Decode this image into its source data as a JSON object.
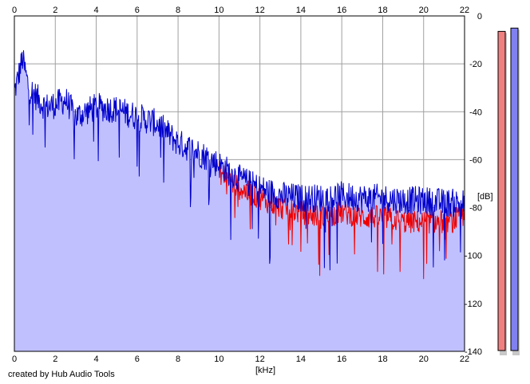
{
  "footer": {
    "credit": "created by Hub Audio Tools"
  },
  "chart_data": {
    "type": "area",
    "xlabel": "[kHz]",
    "ylabel": "[dB]",
    "xlim": [
      0,
      22
    ],
    "ylim": [
      -140,
      0
    ],
    "x_ticks": [
      0,
      2,
      4,
      6,
      8,
      10,
      12,
      14,
      16,
      18,
      20,
      22
    ],
    "y_ticks": [
      0,
      -20,
      -40,
      -60,
      -80,
      -100,
      -120,
      -140
    ],
    "grid": true,
    "series": [
      {
        "color": "#0000cc",
        "fill_color": "#c0c0ff",
        "x": [
          0,
          0.2,
          0.4,
          0.7,
          1,
          1.5,
          2,
          2.5,
          3,
          4,
          5,
          6,
          7,
          8,
          9,
          10,
          11,
          12,
          13,
          14,
          15,
          16,
          17,
          18,
          19,
          20,
          21,
          22
        ],
        "y": [
          -32,
          -25,
          -18,
          -30,
          -33,
          -38,
          -37,
          -35,
          -42,
          -38,
          -39,
          -42,
          -45,
          -53,
          -57,
          -62,
          -68,
          -72,
          -75,
          -76,
          -76,
          -75,
          -76,
          -76,
          -77,
          -77,
          -78,
          -78
        ]
      },
      {
        "color": "#ee0000",
        "x": [
          10,
          11,
          12,
          13,
          14,
          15,
          16,
          17,
          18,
          19,
          20,
          21,
          22
        ],
        "y": [
          -65,
          -72,
          -76,
          -80,
          -82,
          -84,
          -82,
          -84,
          -84,
          -86,
          -86,
          -86,
          -84
        ]
      }
    ],
    "level_meters": [
      {
        "color": "#f08080",
        "level": 0.97
      },
      {
        "color": "#8080f0",
        "level": 0.98
      }
    ]
  }
}
